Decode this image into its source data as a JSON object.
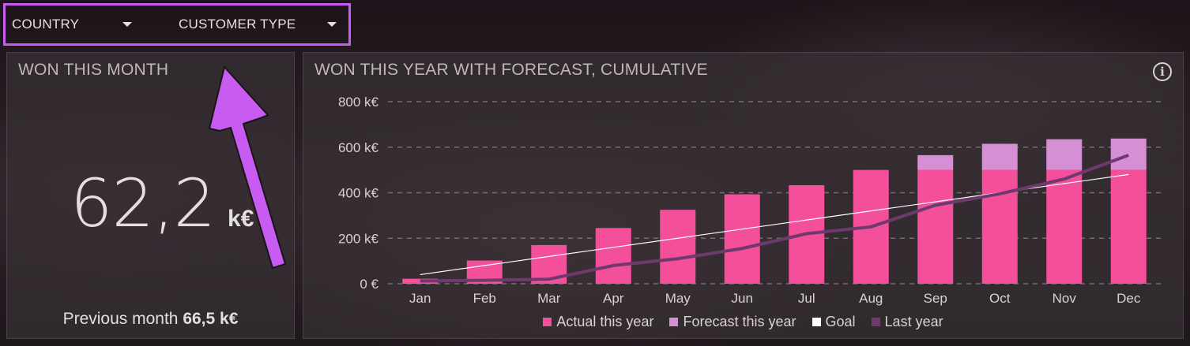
{
  "filters": {
    "country_label": "COUNTRY",
    "customer_type_label": "CUSTOMER TYPE"
  },
  "won_month": {
    "title": "WON THIS MONTH",
    "value": "62,2",
    "unit": "k€",
    "previous_label": "Previous month",
    "previous_value": "66,5 k€"
  },
  "won_year": {
    "title": "WON THIS YEAR WITH FORECAST, CUMULATIVE",
    "info_icon": "info-icon"
  },
  "colors": {
    "actual": "#f44f9a",
    "forecast": "#d68fd4",
    "goal": "#ffffff",
    "last_year": "#6e3a6e",
    "accent_outline": "#c85cf2"
  },
  "chart_data": {
    "type": "bar",
    "title": "WON THIS YEAR WITH FORECAST, CUMULATIVE",
    "categories": [
      "Jan",
      "Feb",
      "Mar",
      "Apr",
      "May",
      "Jun",
      "Jul",
      "Aug",
      "Sep",
      "Oct",
      "Nov",
      "Dec"
    ],
    "y_ticks": [
      "0 €",
      "200 k€",
      "400 k€",
      "600 k€",
      "800 k€"
    ],
    "ylim": [
      0,
      800
    ],
    "grid": true,
    "legend_position": "bottom",
    "series": [
      {
        "name": "Actual this year",
        "type": "bar",
        "values": [
          22,
          102,
          170,
          245,
          325,
          393,
          433,
          500,
          500,
          500,
          500,
          500
        ]
      },
      {
        "name": "Forecast this year",
        "type": "bar-stacked",
        "values": [
          0,
          0,
          0,
          0,
          0,
          0,
          0,
          0,
          65,
          115,
          135,
          138
        ]
      },
      {
        "name": "Goal",
        "type": "line",
        "values": [
          40,
          80,
          120,
          160,
          200,
          240,
          280,
          320,
          360,
          400,
          440,
          480
        ]
      },
      {
        "name": "Last year",
        "type": "line",
        "values": [
          12,
          15,
          20,
          80,
          110,
          155,
          220,
          250,
          345,
          395,
          460,
          565
        ]
      }
    ]
  }
}
